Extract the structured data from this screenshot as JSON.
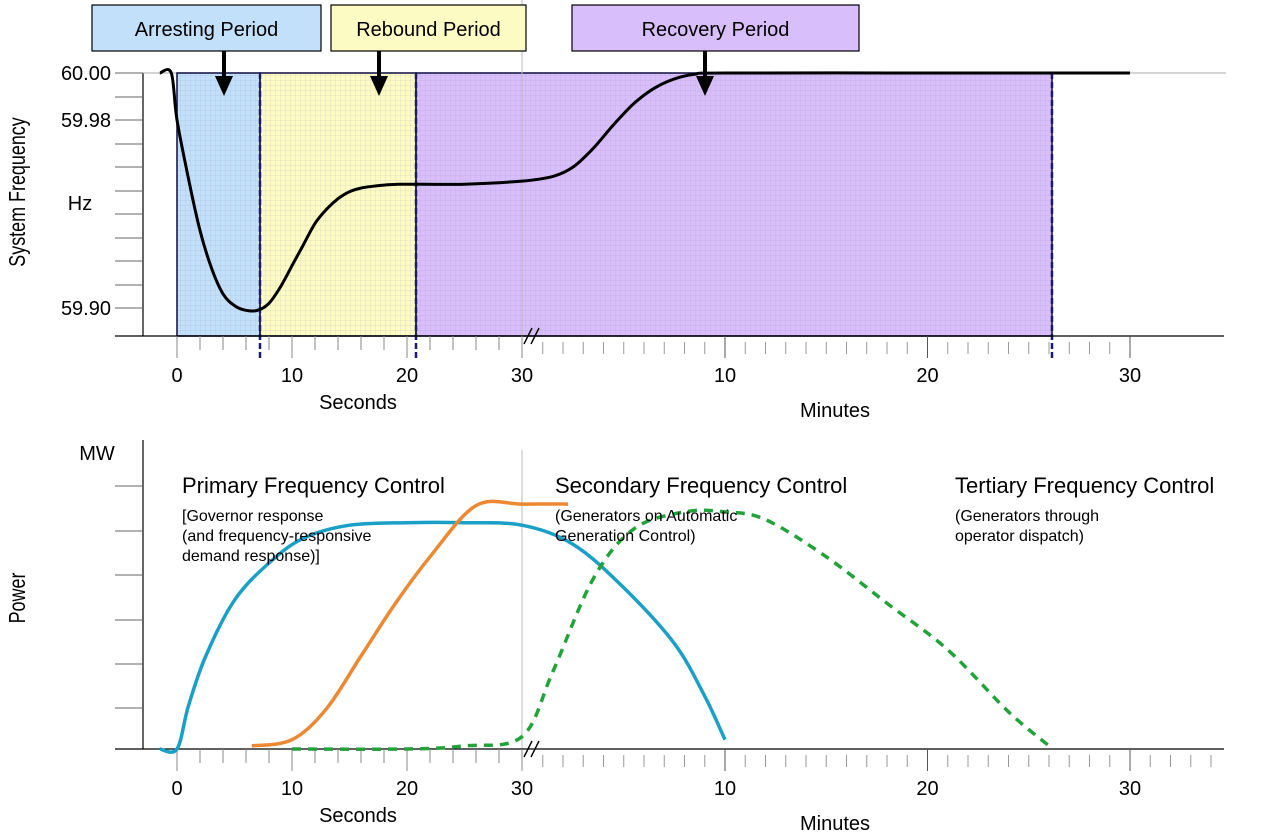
{
  "chart_data": [
    {
      "type": "line",
      "ylabel": "System Frequency",
      "yunit": "Hz",
      "yticks": [
        "60.00",
        "59.98",
        "59.90"
      ],
      "ylim": [
        59.89,
        60.001
      ],
      "x_segments": [
        {
          "label": "Seconds",
          "ticks": [
            "0",
            "10",
            "20",
            "30"
          ],
          "range": [
            0,
            30
          ],
          "color": "#c0272d"
        },
        {
          "label": "Minutes",
          "ticks": [
            "10",
            "20",
            "30"
          ],
          "range": [
            0.5,
            30
          ],
          "color": "#000000"
        }
      ],
      "periods": [
        {
          "name": "Arresting Period",
          "color": "#c3e0fa"
        },
        {
          "name": "Rebound Period",
          "color": "#fdfbc4"
        },
        {
          "name": "Recovery Period",
          "color": "#d8befa"
        }
      ],
      "series": [
        {
          "color": "#000000",
          "points": [
            [
              -1.5,
              60.0
            ],
            [
              -0.5,
              60.0
            ],
            [
              0.0,
              59.98
            ],
            [
              1.0,
              59.955
            ],
            [
              2.0,
              59.933
            ],
            [
              3.0,
              59.917
            ],
            [
              4.0,
              59.906
            ],
            [
              5.0,
              59.901
            ],
            [
              6.0,
              59.899
            ],
            [
              7.0,
              59.899
            ],
            [
              8.0,
              59.902
            ],
            [
              9.0,
              59.909
            ],
            [
              10.0,
              59.918
            ],
            [
              11.0,
              59.927
            ],
            [
              12.0,
              59.936
            ],
            [
              13.0,
              59.942
            ],
            [
              14.0,
              59.9465
            ],
            [
              15.0,
              59.9495
            ],
            [
              16.0,
              59.951
            ],
            [
              17.0,
              59.9518
            ],
            [
              18.0,
              59.9523
            ],
            [
              19.0,
              59.9526
            ],
            [
              20.0,
              59.9527
            ],
            [
              25.0,
              59.9527
            ],
            [
              30.0,
              59.954
            ],
            [
              1.5,
              59.956
            ],
            [
              2.5,
              59.96
            ],
            [
              3.5,
              59.968
            ],
            [
              4.5,
              59.978
            ],
            [
              5.5,
              59.987
            ],
            [
              6.5,
              59.9935
            ],
            [
              7.5,
              59.9975
            ],
            [
              8.5,
              59.9995
            ],
            [
              10.0,
              60.0
            ],
            [
              20.0,
              60.0
            ],
            [
              26.0,
              60.0
            ],
            [
              30.0,
              60.0
            ]
          ]
        }
      ]
    },
    {
      "type": "line",
      "ylabel": "Power",
      "yunit": "MW",
      "x_segments": [
        {
          "label": "Seconds",
          "ticks": [
            "0",
            "10",
            "20",
            "30"
          ],
          "range": [
            0,
            30
          ],
          "color": "#c0272d"
        },
        {
          "label": "Minutes",
          "ticks": [
            "10",
            "20",
            "30"
          ],
          "range": [
            0.5,
            30
          ],
          "color": "#000000"
        }
      ],
      "series": [
        {
          "name": "Primary Frequency Control",
          "description": [
            "[Governor response",
            "(and frequency-responsive",
            "demand response)]"
          ],
          "color": "#1a9fc6",
          "style": "solid",
          "points": [
            [
              -1.5,
              0
            ],
            [
              0,
              0
            ],
            [
              1,
              0.14
            ],
            [
              2.5,
              0.3
            ],
            [
              5,
              0.48
            ],
            [
              8,
              0.6
            ],
            [
              11,
              0.68
            ],
            [
              15,
              0.722
            ],
            [
              20,
              0.73
            ],
            [
              25,
              0.73
            ],
            [
              30,
              0.722
            ],
            [
              2.5,
              0.66
            ],
            [
              5,
              0.52
            ],
            [
              7.5,
              0.34
            ],
            [
              9,
              0.17
            ],
            [
              10,
              0.03
            ]
          ]
        },
        {
          "name": "Secondary Frequency Control",
          "description": [
            "(Generators on Automatic",
            "Generation Control)"
          ],
          "color": "#22a33a",
          "style": "dashed",
          "points": [
            [
              10,
              0
            ],
            [
              20,
              0
            ],
            [
              25,
              0.01
            ],
            [
              30,
              0.04
            ],
            [
              1.5,
              0.25
            ],
            [
              3.5,
              0.55
            ],
            [
              5.5,
              0.71
            ],
            [
              8,
              0.765
            ],
            [
              10,
              0.765
            ],
            [
              12,
              0.74
            ],
            [
              15,
              0.62
            ],
            [
              18,
              0.47
            ],
            [
              21,
              0.32
            ],
            [
              24,
              0.12
            ],
            [
              26,
              0.01
            ]
          ]
        },
        {
          "name": "Tertiary Frequency Control",
          "description": [
            "(Generators through",
            "operator dispatch)"
          ],
          "color": "#ec8832",
          "style": "solid",
          "points": [
            [
              6.5,
              0.01
            ],
            [
              10,
              0.03
            ],
            [
              13,
              0.13
            ],
            [
              16,
              0.3
            ],
            [
              19,
              0.47
            ],
            [
              22,
              0.62
            ],
            [
              26,
              0.785
            ],
            [
              30,
              0.79
            ],
            [
              34,
              0.79
            ]
          ]
        }
      ]
    }
  ]
}
